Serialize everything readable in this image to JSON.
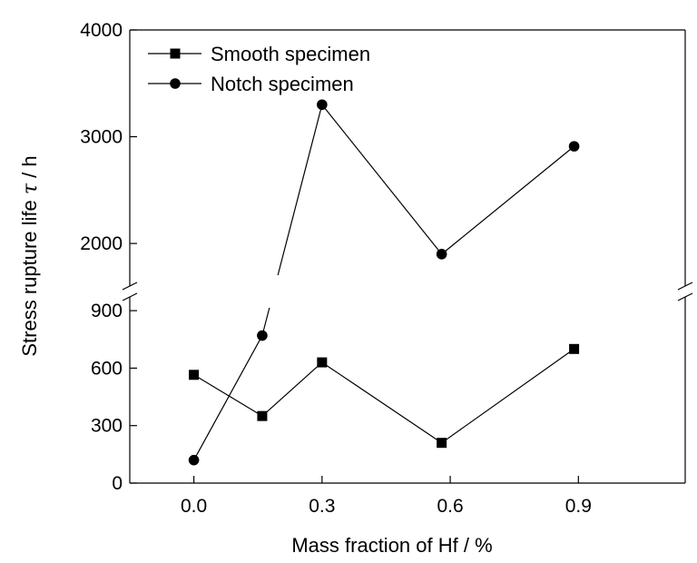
{
  "chart_data": {
    "type": "line",
    "xlabel": "Mass fraction of Hf / %",
    "ylabel_prefix": "Stress rupture life ",
    "ylabel_symbol": "τ",
    "ylabel_suffix": " / h",
    "x_ticks": [
      "0.0",
      "0.3",
      "0.6",
      "0.9"
    ],
    "y_axis_broken": true,
    "y_lower_segment": {
      "range": [
        0,
        1000
      ],
      "ticks": [
        "0",
        "300",
        "600",
        "900"
      ]
    },
    "y_upper_segment": {
      "range": [
        1550,
        4000
      ],
      "ticks": [
        "2000",
        "3000",
        "4000"
      ]
    },
    "x_range": [
      -0.15,
      1.15
    ],
    "legend_position": "top-left",
    "grid": false,
    "series": [
      {
        "name": "Smooth specimen",
        "marker": "square",
        "x": [
          0.0,
          0.16,
          0.3,
          0.58,
          0.89
        ],
        "y": [
          565,
          350,
          630,
          210,
          700
        ]
      },
      {
        "name": "Notch specimen",
        "marker": "circle",
        "x": [
          0.0,
          0.16,
          0.3,
          0.58,
          0.89
        ],
        "y": [
          120,
          770,
          3300,
          1900,
          2910
        ]
      }
    ]
  }
}
